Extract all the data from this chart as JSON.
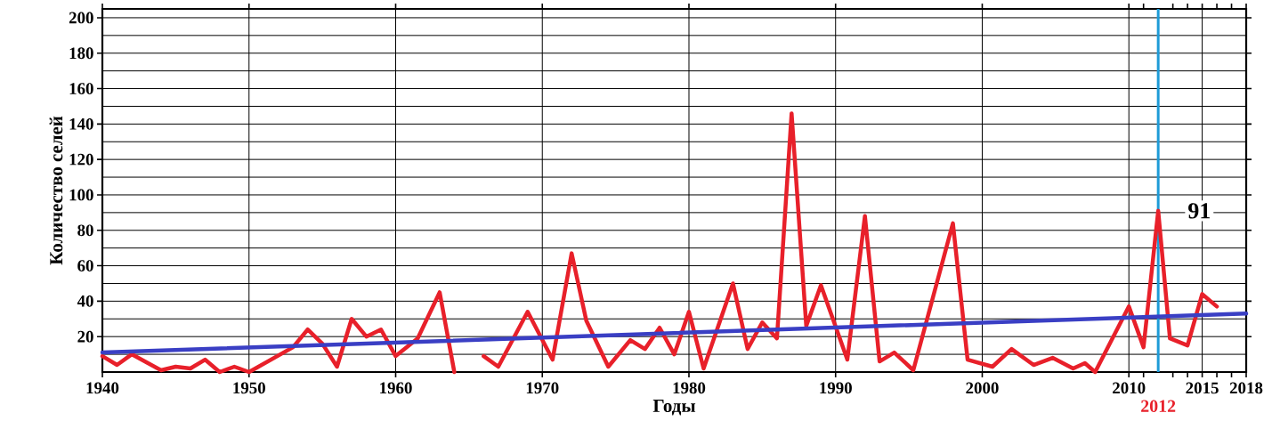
{
  "chart_data": {
    "type": "line",
    "xlabel": "Годы",
    "ylabel": "Количество селей",
    "xlim": [
      1940,
      2018
    ],
    "ylim": [
      0,
      205
    ],
    "xticks": [
      1940,
      1950,
      1960,
      1970,
      1980,
      1990,
      2000,
      2010,
      {
        "value": 2011,
        "label": null
      },
      {
        "value": 2013,
        "label": null
      },
      {
        "value": 2014,
        "label": null
      },
      2015,
      {
        "value": 2016,
        "label": null
      },
      {
        "value": 2017,
        "label": null
      },
      2018
    ],
    "yticks": [
      {
        "value": 10,
        "label": null
      },
      20,
      {
        "value": 30,
        "label": null
      },
      40,
      {
        "value": 50,
        "label": null
      },
      60,
      {
        "value": 70,
        "label": null
      },
      80,
      {
        "value": 90,
        "label": null
      },
      100,
      {
        "value": 110,
        "label": null
      },
      120,
      {
        "value": 130,
        "label": null
      },
      140,
      {
        "value": 150,
        "label": null
      },
      160,
      {
        "value": 170,
        "label": null
      },
      180,
      {
        "value": 190,
        "label": null
      },
      200
    ],
    "grid": true,
    "marker": "none",
    "line_style": "solid",
    "series": [
      {
        "color": "#e8202a",
        "x": [
          1940,
          1941,
          1942,
          1944,
          1945,
          1946,
          1947,
          1948,
          1949,
          1950,
          1953,
          1954,
          1955,
          1956,
          1957,
          1958,
          1959,
          1960,
          1961.5,
          1963,
          1964,
          1965,
          1966,
          1967,
          1969,
          1970.7,
          1972,
          1973,
          1974.5,
          1976,
          1977,
          1978,
          1979,
          1980,
          1981,
          1983,
          1984,
          1985,
          1986,
          1987,
          1988,
          1989,
          1990.8,
          1992,
          1993,
          1994,
          1995.3,
          1998,
          1999,
          2000.7,
          2002,
          2003.5,
          2004.8,
          2006.2,
          2007,
          2007.7,
          2010,
          2011,
          2012,
          2012.8,
          2014,
          2015,
          2016
        ],
        "values": [
          9,
          4,
          10,
          1,
          3,
          2,
          7,
          0,
          3,
          0,
          14,
          24,
          16,
          3,
          30,
          20,
          24,
          9,
          19,
          45,
          0,
          null,
          9,
          3,
          34,
          7,
          67,
          29,
          3,
          18,
          13,
          25,
          10,
          34,
          2,
          50,
          13,
          28,
          19,
          146,
          26,
          49,
          7,
          88,
          6,
          11,
          1,
          84,
          7,
          3,
          13,
          4,
          8,
          2,
          5,
          0,
          37,
          14,
          91,
          19,
          15,
          44,
          37
        ]
      },
      {
        "color": "#3a3fc4",
        "x": [
          1940,
          2018
        ],
        "values": [
          11,
          33
        ]
      }
    ],
    "ref_lines": [
      {
        "axis": "x",
        "value": 2012,
        "label": "2012",
        "color": "#1e9bd7"
      }
    ],
    "annotations": [
      {
        "text": "91",
        "x": 2012,
        "y": 91
      }
    ]
  }
}
